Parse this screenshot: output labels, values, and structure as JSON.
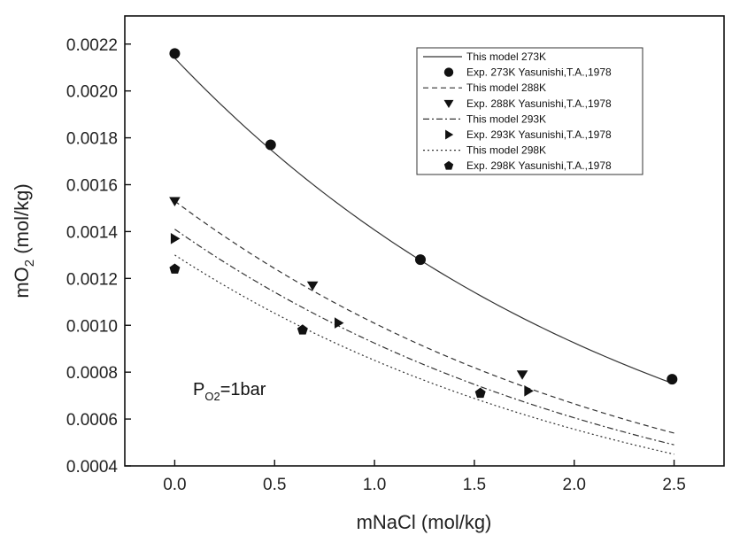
{
  "chart_data": {
    "type": "scatter",
    "title": "",
    "xlabel": "mNaCl (mol/kg)",
    "ylabel_main": "mO",
    "ylabel_sub": "2",
    "ylabel_unit": " (mol/kg)",
    "xlim": [
      -0.25,
      2.75
    ],
    "ylim": [
      0.0004,
      0.00232
    ],
    "xticks": [
      0.0,
      0.5,
      1.0,
      1.5,
      2.0,
      2.5
    ],
    "xtick_labels": [
      "0.0",
      "0.5",
      "1.0",
      "1.5",
      "2.0",
      "2.5"
    ],
    "yticks": [
      0.0004,
      0.0006,
      0.0008,
      0.001,
      0.0012,
      0.0014,
      0.0016,
      0.0018,
      0.002,
      0.0022
    ],
    "ytick_labels": [
      "0.0004",
      "0.0006",
      "0.0008",
      "0.0010",
      "0.0012",
      "0.0014",
      "0.0016",
      "0.0018",
      "0.0020",
      "0.0022"
    ],
    "grid": false,
    "legend_position": "top-right",
    "annotation": {
      "main": "P",
      "sub": "O2",
      "rest": "=1bar"
    },
    "model_series": [
      {
        "name": "This model 273K",
        "dash": "solid",
        "y0": 0.00214,
        "y_end": 0.00075,
        "x_end": 2.5
      },
      {
        "name": "This model 288K",
        "dash": "dashed",
        "y0": 0.00153,
        "y_end": 0.00054,
        "x_end": 2.5
      },
      {
        "name": "This model 293K",
        "dash": "dashdot",
        "y0": 0.00141,
        "y_end": 0.00049,
        "x_end": 2.5
      },
      {
        "name": "This model 298K",
        "dash": "dotted",
        "y0": 0.0013,
        "y_end": 0.00045,
        "x_end": 2.5
      }
    ],
    "experimental_series": [
      {
        "name": "Exp. 273K Yasunishi,T.A.,1978",
        "marker": "circle",
        "x": [
          0.0,
          0.48,
          1.23,
          2.49
        ],
        "y": [
          0.00216,
          0.00177,
          0.00128,
          0.00077
        ]
      },
      {
        "name": "Exp. 288K Yasunishi,T.A.,1978",
        "marker": "triangle-down",
        "x": [
          0.0,
          0.69,
          1.74
        ],
        "y": [
          0.00153,
          0.00117,
          0.00079
        ]
      },
      {
        "name": "Exp. 293K Yasunishi,T.A.,1978",
        "marker": "triangle-right",
        "x": [
          0.0,
          0.82,
          1.77
        ],
        "y": [
          0.00137,
          0.00101,
          0.00072
        ]
      },
      {
        "name": "Exp. 298K Yasunishi,T.A.,1978",
        "marker": "pentagon",
        "x": [
          0.0,
          0.64,
          1.53
        ],
        "y": [
          0.00124,
          0.00098,
          0.00071
        ]
      }
    ]
  }
}
